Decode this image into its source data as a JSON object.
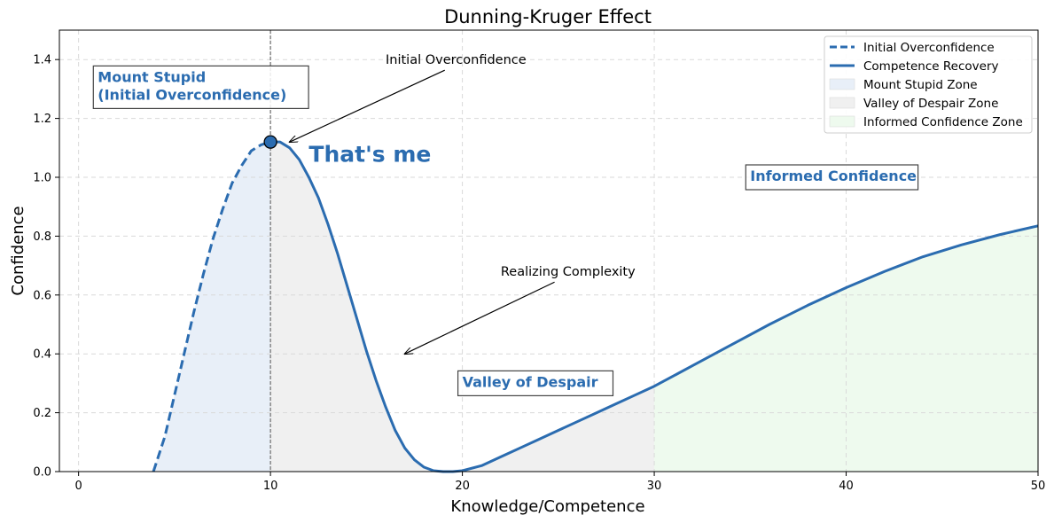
{
  "chart_data": {
    "type": "line",
    "title": "Dunning-Kruger Effect",
    "xlabel": "Knowledge/Competence",
    "ylabel": "Confidence",
    "xlim": [
      -1,
      50
    ],
    "ylim": [
      0,
      1.5
    ],
    "x_ticks": [
      0,
      10,
      20,
      30,
      40,
      50
    ],
    "y_ticks": [
      0.0,
      0.2,
      0.4,
      0.6,
      0.8,
      1.0,
      1.2,
      1.4
    ],
    "x_tick_labels": [
      "0",
      "10",
      "20",
      "30",
      "40",
      "50"
    ],
    "y_tick_labels": [
      "0.0",
      "0.2",
      "0.4",
      "0.6",
      "0.8",
      "1.0",
      "1.2",
      "1.4"
    ],
    "grid": true,
    "legend_position": "top-right",
    "vertical_marker_x": 10,
    "peak_point": {
      "x": 10,
      "y": 1.12
    },
    "series": [
      {
        "name": "Initial Overconfidence",
        "style": "dashed",
        "color": "#2b6cb0",
        "x": [
          3.9,
          4.5,
          5,
          5.5,
          6,
          6.5,
          7,
          7.5,
          8,
          8.5,
          9,
          9.5,
          10
        ],
        "y": [
          0.0,
          0.12,
          0.26,
          0.4,
          0.54,
          0.67,
          0.79,
          0.89,
          0.98,
          1.04,
          1.09,
          1.11,
          1.12
        ]
      },
      {
        "name": "Competence Recovery",
        "style": "solid",
        "color": "#2b6cb0",
        "x": [
          10,
          10.5,
          11,
          11.5,
          12,
          12.5,
          13,
          13.5,
          14,
          14.5,
          15,
          15.5,
          16,
          16.5,
          17,
          17.5,
          18,
          18.5,
          19,
          19.5,
          20,
          21,
          22,
          23,
          24,
          25,
          26,
          27,
          28,
          29,
          30,
          32,
          34,
          36,
          38,
          40,
          42,
          44,
          46,
          48,
          50
        ],
        "y": [
          1.12,
          1.12,
          1.1,
          1.06,
          1.0,
          0.93,
          0.84,
          0.74,
          0.63,
          0.52,
          0.41,
          0.31,
          0.22,
          0.14,
          0.08,
          0.04,
          0.015,
          0.003,
          0.0,
          0.0,
          0.003,
          0.02,
          0.05,
          0.08,
          0.11,
          0.14,
          0.17,
          0.2,
          0.23,
          0.26,
          0.29,
          0.36,
          0.43,
          0.5,
          0.565,
          0.625,
          0.68,
          0.73,
          0.77,
          0.805,
          0.835
        ]
      }
    ],
    "zones": [
      {
        "name": "Mount Stupid Zone",
        "x_range": [
          3.9,
          10
        ],
        "color": "#e8eff8"
      },
      {
        "name": "Valley of Despair Zone",
        "x_range": [
          10,
          30
        ],
        "color": "#f0f0f0"
      },
      {
        "name": "Informed Confidence Zone",
        "x_range": [
          30,
          50
        ],
        "color": "#eefaee"
      }
    ],
    "annotations": [
      {
        "text": "Initial Overconfidence",
        "text_x": 16,
        "text_y": 1.4,
        "arrow_to_x": 11,
        "arrow_to_y": 1.12
      },
      {
        "text": "Realizing Complexity",
        "text_x": 22,
        "text_y": 0.68,
        "arrow_to_x": 17,
        "arrow_to_y": 0.4
      }
    ],
    "zone_labels": [
      {
        "lines": [
          "Mount Stupid",
          "(Initial Overconfidence)"
        ],
        "x": 1,
        "y": 1.3
      },
      {
        "lines": [
          "Valley of Despair"
        ],
        "x": 20,
        "y": 0.3
      },
      {
        "lines": [
          "Informed Confidence"
        ],
        "x": 35,
        "y": 1.0
      }
    ],
    "point_label": {
      "text": "That's me",
      "x": 12,
      "y": 1.08
    }
  },
  "colors": {
    "line": "#2b6cb0",
    "zone_label": "#2b6cb0",
    "grid": "#d9d9d9"
  }
}
